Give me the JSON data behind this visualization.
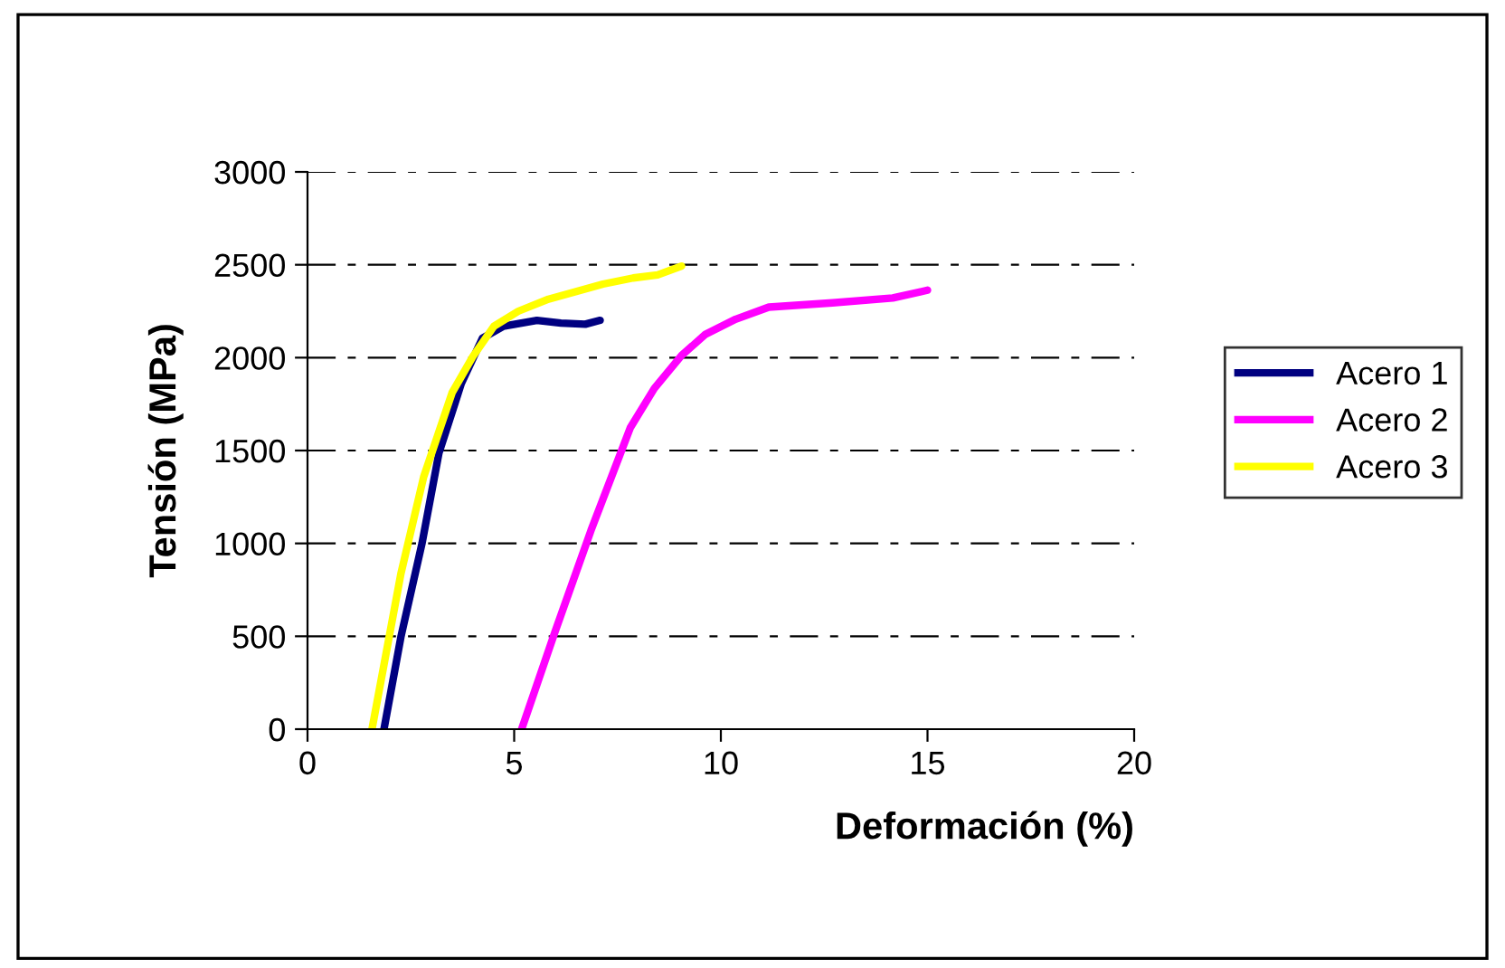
{
  "chart_data": {
    "type": "line",
    "xlabel": "Deformación (%)",
    "ylabel": "Tensión (MPa)",
    "xlim": [
      0,
      20
    ],
    "xticks": [
      0,
      5,
      10,
      15,
      20
    ],
    "ylim": [
      0,
      3000
    ],
    "yticks": [
      0,
      500,
      1000,
      1500,
      2000,
      2500,
      3000
    ],
    "grid": "y",
    "legend": "right",
    "marker": "none",
    "line_style": "solid",
    "series": [
      {
        "name": "Acero 1",
        "color": "#000080",
        "x": [
          1.85,
          2.26,
          2.77,
          3.18,
          3.72,
          4.23,
          4.74,
          5.55,
          6.13,
          6.72,
          7.08
        ],
        "values": [
          0,
          497,
          1000,
          1487,
          1860,
          2104,
          2169,
          2201,
          2186,
          2180,
          2201
        ]
      },
      {
        "name": "Acero 2",
        "color": "#ff00ff",
        "x": [
          5.18,
          5.98,
          6.86,
          7.81,
          8.39,
          9.05,
          9.63,
          10.36,
          11.16,
          12.7,
          14.16,
          15
        ],
        "values": [
          0,
          519,
          1071,
          1623,
          1834,
          2012,
          2126,
          2207,
          2272,
          2295,
          2321,
          2363
        ]
      },
      {
        "name": "Acero 3",
        "color": "#ffff00",
        "x": [
          1.56,
          2.26,
          2.81,
          3.5,
          4.0,
          4.51,
          5.1,
          5.83,
          7.15,
          7.88,
          8.47,
          9.05
        ],
        "values": [
          0,
          838,
          1358,
          1812,
          2006,
          2169,
          2250,
          2315,
          2396,
          2429,
          2445,
          2493
        ]
      }
    ]
  }
}
